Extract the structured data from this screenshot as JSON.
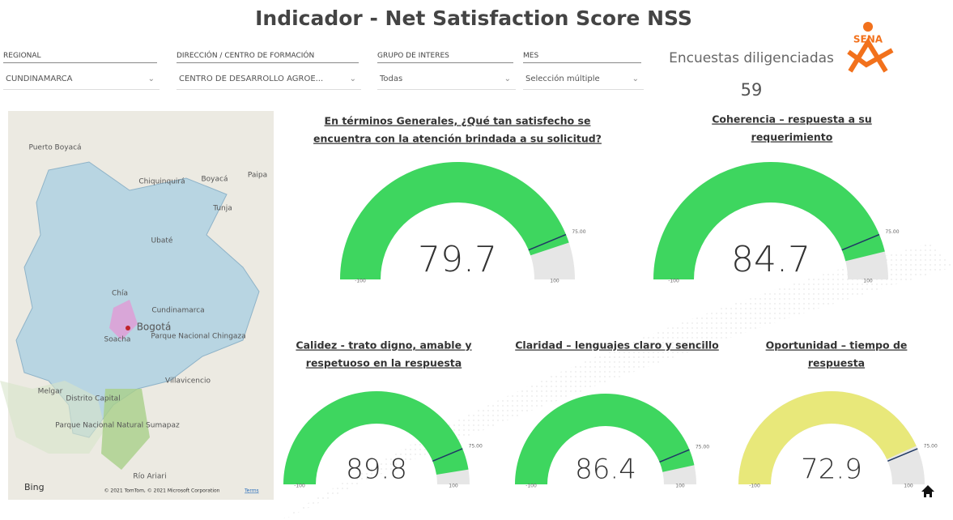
{
  "title": "Indicador  - Net Satisfaction Score NSS",
  "logo": "SENA",
  "filters": [
    {
      "label": "REGIONAL",
      "value": "CUNDINAMARCA"
    },
    {
      "label": "DIRECCIÓN / CENTRO DE FORMACIÓN",
      "value": "CENTRO DE DESARROLLO AGROE..."
    },
    {
      "label": "GRUPO DE INTERES",
      "value": "Todas"
    },
    {
      "label": "MES",
      "value": "Selección múltiple"
    }
  ],
  "card": {
    "label": "Encuestas diligenciadas",
    "value": 59
  },
  "map": {
    "places": [
      "Puerto Boyacá",
      "Chiquinquirá",
      "Boyacá",
      "Paipa",
      "Tunja",
      "Ubaté",
      "Chía",
      "Cundinamarca",
      "Bogotá",
      "Soacha",
      "Parque Nacional Chingaza",
      "Villavicencio",
      "Melgar",
      "Distrito Capital",
      "Parque Nacional Natural Sumapaz",
      "Río Ariari"
    ],
    "brand": "Bing",
    "attribution": "© 2021 TomTom, © 2021 Microsoft Corporation",
    "terms": "Terms"
  },
  "chart_data": [
    {
      "type": "gauge",
      "title": [
        "En términos Generales, ¿Qué tan satisfecho se",
        "encuentra con la atención brindada a su solicitud?"
      ],
      "values": [
        79.7
      ],
      "color": "#3ed65f",
      "ylim": [
        -100,
        100
      ],
      "yticks": [
        -100,
        {
          "value": 75,
          "label": "75.00"
        },
        100
      ]
    },
    {
      "type": "gauge",
      "title": [
        "Coherencia – respuesta a su",
        "requerimiento"
      ],
      "values": [
        84.7
      ],
      "color": "#3ed65f",
      "ylim": [
        -100,
        100
      ],
      "yticks": [
        -100,
        {
          "value": 75,
          "label": "75.00"
        },
        100
      ]
    },
    {
      "type": "gauge",
      "title": [
        "Calidez - trato digno, amable y",
        "respetuoso en la respuesta"
      ],
      "values": [
        89.8
      ],
      "color": "#3ed65f",
      "ylim": [
        -100,
        100
      ],
      "yticks": [
        -100,
        {
          "value": 75,
          "label": "75.00"
        },
        100
      ]
    },
    {
      "type": "gauge",
      "title": [
        "Claridad – lenguajes claro y sencillo"
      ],
      "values": [
        86.4
      ],
      "color": "#3ed65f",
      "ylim": [
        -100,
        100
      ],
      "yticks": [
        -100,
        {
          "value": 75,
          "label": "75.00"
        },
        100
      ]
    },
    {
      "type": "gauge",
      "title": [
        "Oportunidad – tiempo de",
        "respuesta"
      ],
      "values": [
        72.9
      ],
      "color": "#e8e87a",
      "ylim": [
        -100,
        100
      ],
      "yticks": [
        -100,
        {
          "value": 75,
          "label": "75.00"
        },
        100
      ]
    }
  ]
}
